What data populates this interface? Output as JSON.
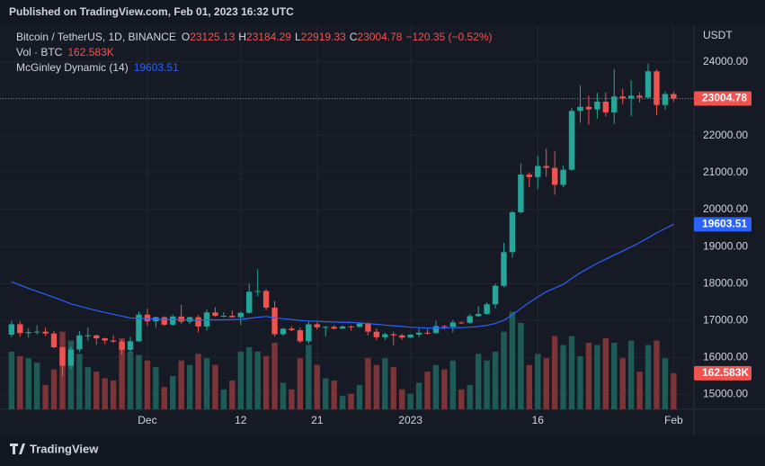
{
  "header": {
    "published": "Published on TradingView.com, Feb 01, 2023 16:32 UTC",
    "logo": "TradingView"
  },
  "chart_data": {
    "type": "candlestick",
    "title": "Bitcoin / TetherUS, 1D, BINANCE",
    "legend_ohlc": [
      {
        "key": "O",
        "value": 23125.13
      },
      {
        "key": "H",
        "value": 23184.29
      },
      {
        "key": "L",
        "value": 22919.33
      },
      {
        "key": "C",
        "value": 23004.78
      }
    ],
    "change_label": "−120.35 (−0.52%)",
    "axis_unit": "USDT",
    "up_color": "#26a69a",
    "down_color": "#ef5350",
    "grid": true,
    "open": [
      16620,
      16900,
      16660,
      16690,
      16700,
      16650,
      16280,
      15780,
      16220,
      16600,
      16600,
      16520,
      16460,
      16430,
      16210,
      16440,
      17160,
      16980,
      17090,
      16890,
      17110,
      16970,
      17090,
      16840,
      17220,
      17130,
      17130,
      17090,
      17210,
      17780,
      17800,
      17350,
      16630,
      16780,
      16740,
      16440,
      16900,
      16820,
      16830,
      16780,
      16840,
      16830,
      16920,
      16700,
      16550,
      16630,
      16600,
      16540,
      16620,
      16670,
      16660,
      16850,
      16830,
      16950,
      16940,
      17120,
      17180,
      17440,
      17940,
      18850,
      19930,
      20950,
      20880,
      21180,
      21130,
      20670,
      21080,
      22670,
      22780,
      22710,
      22920,
      22630,
      23060,
      23010,
      23080,
      23030,
      23740,
      22830,
      23125.13
    ],
    "high": [
      16990,
      16980,
      16790,
      16880,
      16810,
      16720,
      16290,
      16300,
      16720,
      16810,
      16620,
      16540,
      16600,
      16480,
      16560,
      17250,
      17320,
      17110,
      17120,
      17160,
      17430,
      17110,
      17150,
      17300,
      17360,
      17230,
      17270,
      17240,
      18000,
      18390,
      17850,
      17530,
      16800,
      16850,
      16810,
      16970,
      16950,
      16860,
      16880,
      16870,
      16870,
      16950,
      16950,
      16790,
      16670,
      16700,
      16640,
      16630,
      16790,
      16770,
      16990,
      16880,
      17020,
      16970,
      17180,
      17390,
      17490,
      18000,
      19100,
      19960,
      21250,
      21000,
      21460,
      21650,
      21580,
      21190,
      22750,
      23360,
      23080,
      23160,
      23170,
      23800,
      23270,
      23500,
      23170,
      23950,
      23790,
      23200,
      23184.29
    ],
    "low": [
      16550,
      16560,
      16540,
      16620,
      16580,
      16250,
      15500,
      15700,
      16150,
      16460,
      16350,
      16360,
      16400,
      16080,
      16150,
      16420,
      16860,
      16800,
      16850,
      16860,
      16900,
      16900,
      16680,
      16730,
      17100,
      17090,
      17080,
      16880,
      17190,
      17660,
      17280,
      16560,
      16590,
      16710,
      16390,
      16370,
      16760,
      16570,
      16760,
      16790,
      16730,
      16800,
      16600,
      16470,
      16480,
      16340,
      16480,
      16530,
      16550,
      16620,
      16650,
      16760,
      16680,
      16910,
      16910,
      17100,
      17150,
      17330,
      17900,
      18700,
      19900,
      20600,
      20560,
      20890,
      20400,
      20610,
      21050,
      22350,
      22300,
      22460,
      22520,
      22320,
      22860,
      22530,
      22900,
      23000,
      22550,
      22700,
      22919.33
    ],
    "close": [
      16900,
      16660,
      16690,
      16700,
      16650,
      16280,
      15780,
      16220,
      16600,
      16600,
      16520,
      16460,
      16430,
      16210,
      16440,
      17160,
      16980,
      17090,
      16890,
      17110,
      16970,
      17090,
      16840,
      17220,
      17130,
      17130,
      17090,
      17210,
      17780,
      17800,
      17350,
      16630,
      16780,
      16740,
      16440,
      16900,
      16820,
      16830,
      16780,
      16840,
      16830,
      16920,
      16700,
      16550,
      16630,
      16600,
      16540,
      16620,
      16670,
      16660,
      16850,
      16830,
      16950,
      16940,
      17120,
      17180,
      17440,
      17940,
      18850,
      19930,
      20950,
      20880,
      21180,
      21130,
      20670,
      21080,
      22670,
      22780,
      22710,
      22920,
      22630,
      23060,
      23010,
      23080,
      23030,
      23740,
      22830,
      23125.13,
      23004.78
    ],
    "xlim": [
      -0.3,
      80.4
    ],
    "ylim": [
      14600,
      24900
    ],
    "yticks": [
      {
        "value": 15000,
        "label": "15000.00"
      },
      {
        "value": 16000,
        "label": "16000.00"
      },
      {
        "value": 17000,
        "label": "17000.00"
      },
      {
        "value": 18000,
        "label": "18000.00"
      },
      {
        "value": 19000,
        "label": "19000.00"
      },
      {
        "value": 20000,
        "label": "20000.00"
      },
      {
        "value": 21000,
        "label": "21000.00"
      },
      {
        "value": 22000,
        "label": "22000.00"
      },
      {
        "value": 23000,
        "label": "23000.00"
      },
      {
        "value": 24000,
        "label": "24000.00"
      }
    ],
    "xticks": [
      {
        "value": 16,
        "label": "Dec"
      },
      {
        "value": 27,
        "label": "12"
      },
      {
        "value": 36,
        "label": "21"
      },
      {
        "value": 47,
        "label": "2023"
      },
      {
        "value": 62,
        "label": "16"
      },
      {
        "value": 78,
        "label": "Feb"
      }
    ],
    "volume": {
      "name": "Vol · BTC",
      "last_label": "162.583K",
      "vlim": [
        0,
        450000
      ],
      "up_color": "#1e5b57",
      "down_color": "#7b3437",
      "values": [
        260000,
        240000,
        230000,
        210000,
        110000,
        180000,
        350000,
        310000,
        250000,
        190000,
        170000,
        140000,
        130000,
        320000,
        260000,
        245000,
        220000,
        190000,
        100000,
        150000,
        220000,
        200000,
        250000,
        230000,
        200000,
        90000,
        130000,
        260000,
        280000,
        260000,
        240000,
        300000,
        120000,
        90000,
        230000,
        290000,
        200000,
        140000,
        130000,
        60000,
        70000,
        110000,
        230000,
        200000,
        230000,
        190000,
        90000,
        70000,
        120000,
        170000,
        200000,
        180000,
        220000,
        90000,
        110000,
        250000,
        220000,
        260000,
        350000,
        440000,
        390000,
        200000,
        250000,
        230000,
        330000,
        290000,
        330000,
        240000,
        300000,
        290000,
        320000,
        300000,
        230000,
        310000,
        170000,
        290000,
        310000,
        230000,
        162583
      ]
    },
    "indicator": {
      "name": "McGinley Dynamic (14)",
      "color": "#2962ff",
      "values": [
        18050,
        17960,
        17870,
        17790,
        17710,
        17630,
        17540,
        17450,
        17390,
        17330,
        17270,
        17220,
        17170,
        17120,
        17070,
        17060,
        17050,
        17040,
        17030,
        17030,
        17020,
        17020,
        17010,
        17020,
        17020,
        17020,
        17030,
        17030,
        17060,
        17090,
        17110,
        17080,
        17050,
        17030,
        17000,
        16990,
        16980,
        16970,
        16960,
        16950,
        16950,
        16940,
        16920,
        16900,
        16880,
        16860,
        16840,
        16820,
        16810,
        16800,
        16800,
        16800,
        16810,
        16810,
        16820,
        16840,
        16870,
        16920,
        17010,
        17150,
        17330,
        17490,
        17640,
        17780,
        17880,
        17980,
        18140,
        18290,
        18420,
        18550,
        18660,
        18770,
        18880,
        18990,
        19110,
        19240,
        19370,
        19490,
        19603.51
      ]
    }
  }
}
